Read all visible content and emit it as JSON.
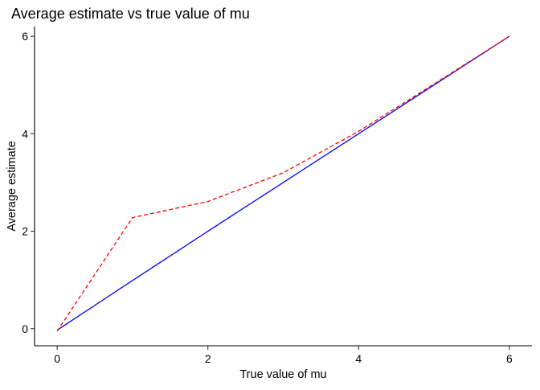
{
  "chart_data": {
    "type": "line",
    "title": "Average estimate vs true value of mu",
    "xlabel": "True value of mu",
    "ylabel": "Average estimate",
    "xlim": [
      -0.3,
      6.3
    ],
    "ylim": [
      -0.35,
      6.2
    ],
    "xticks": [
      0,
      2,
      4,
      6
    ],
    "yticks": [
      0,
      2,
      4,
      6
    ],
    "grid": false,
    "series": [
      {
        "color": "#0000ff",
        "linestyle": "solid",
        "x": [
          0,
          1,
          2,
          3,
          4,
          5,
          6
        ],
        "y": [
          -0.03,
          0.99,
          2.0,
          3.0,
          4.0,
          5.0,
          6.0
        ]
      },
      {
        "color": "#ff0000",
        "linestyle": "dashed",
        "x": [
          0,
          1,
          2,
          3,
          4,
          5,
          6
        ],
        "y": [
          -0.05,
          2.28,
          2.61,
          3.2,
          4.05,
          5.02,
          6.0
        ]
      }
    ]
  }
}
